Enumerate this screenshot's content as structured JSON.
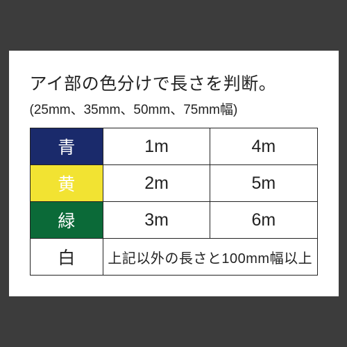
{
  "title": "アイ部の色分けで長さを判断。",
  "subtitle": "(25mm、35mm、50mm、75mm幅)",
  "rows": [
    {
      "label": "青",
      "bg": "#1a2a6b",
      "fg": "#ffffff",
      "v1": "1m",
      "v2": "4m"
    },
    {
      "label": "黄",
      "bg": "#f2e332",
      "fg": "#ffffff",
      "v1": "2m",
      "v2": "5m"
    },
    {
      "label": "緑",
      "bg": "#0b6a38",
      "fg": "#ffffff",
      "v1": "3m",
      "v2": "6m"
    }
  ],
  "last": {
    "label": "白",
    "note": "上記以外の長さと100mm幅以上"
  }
}
